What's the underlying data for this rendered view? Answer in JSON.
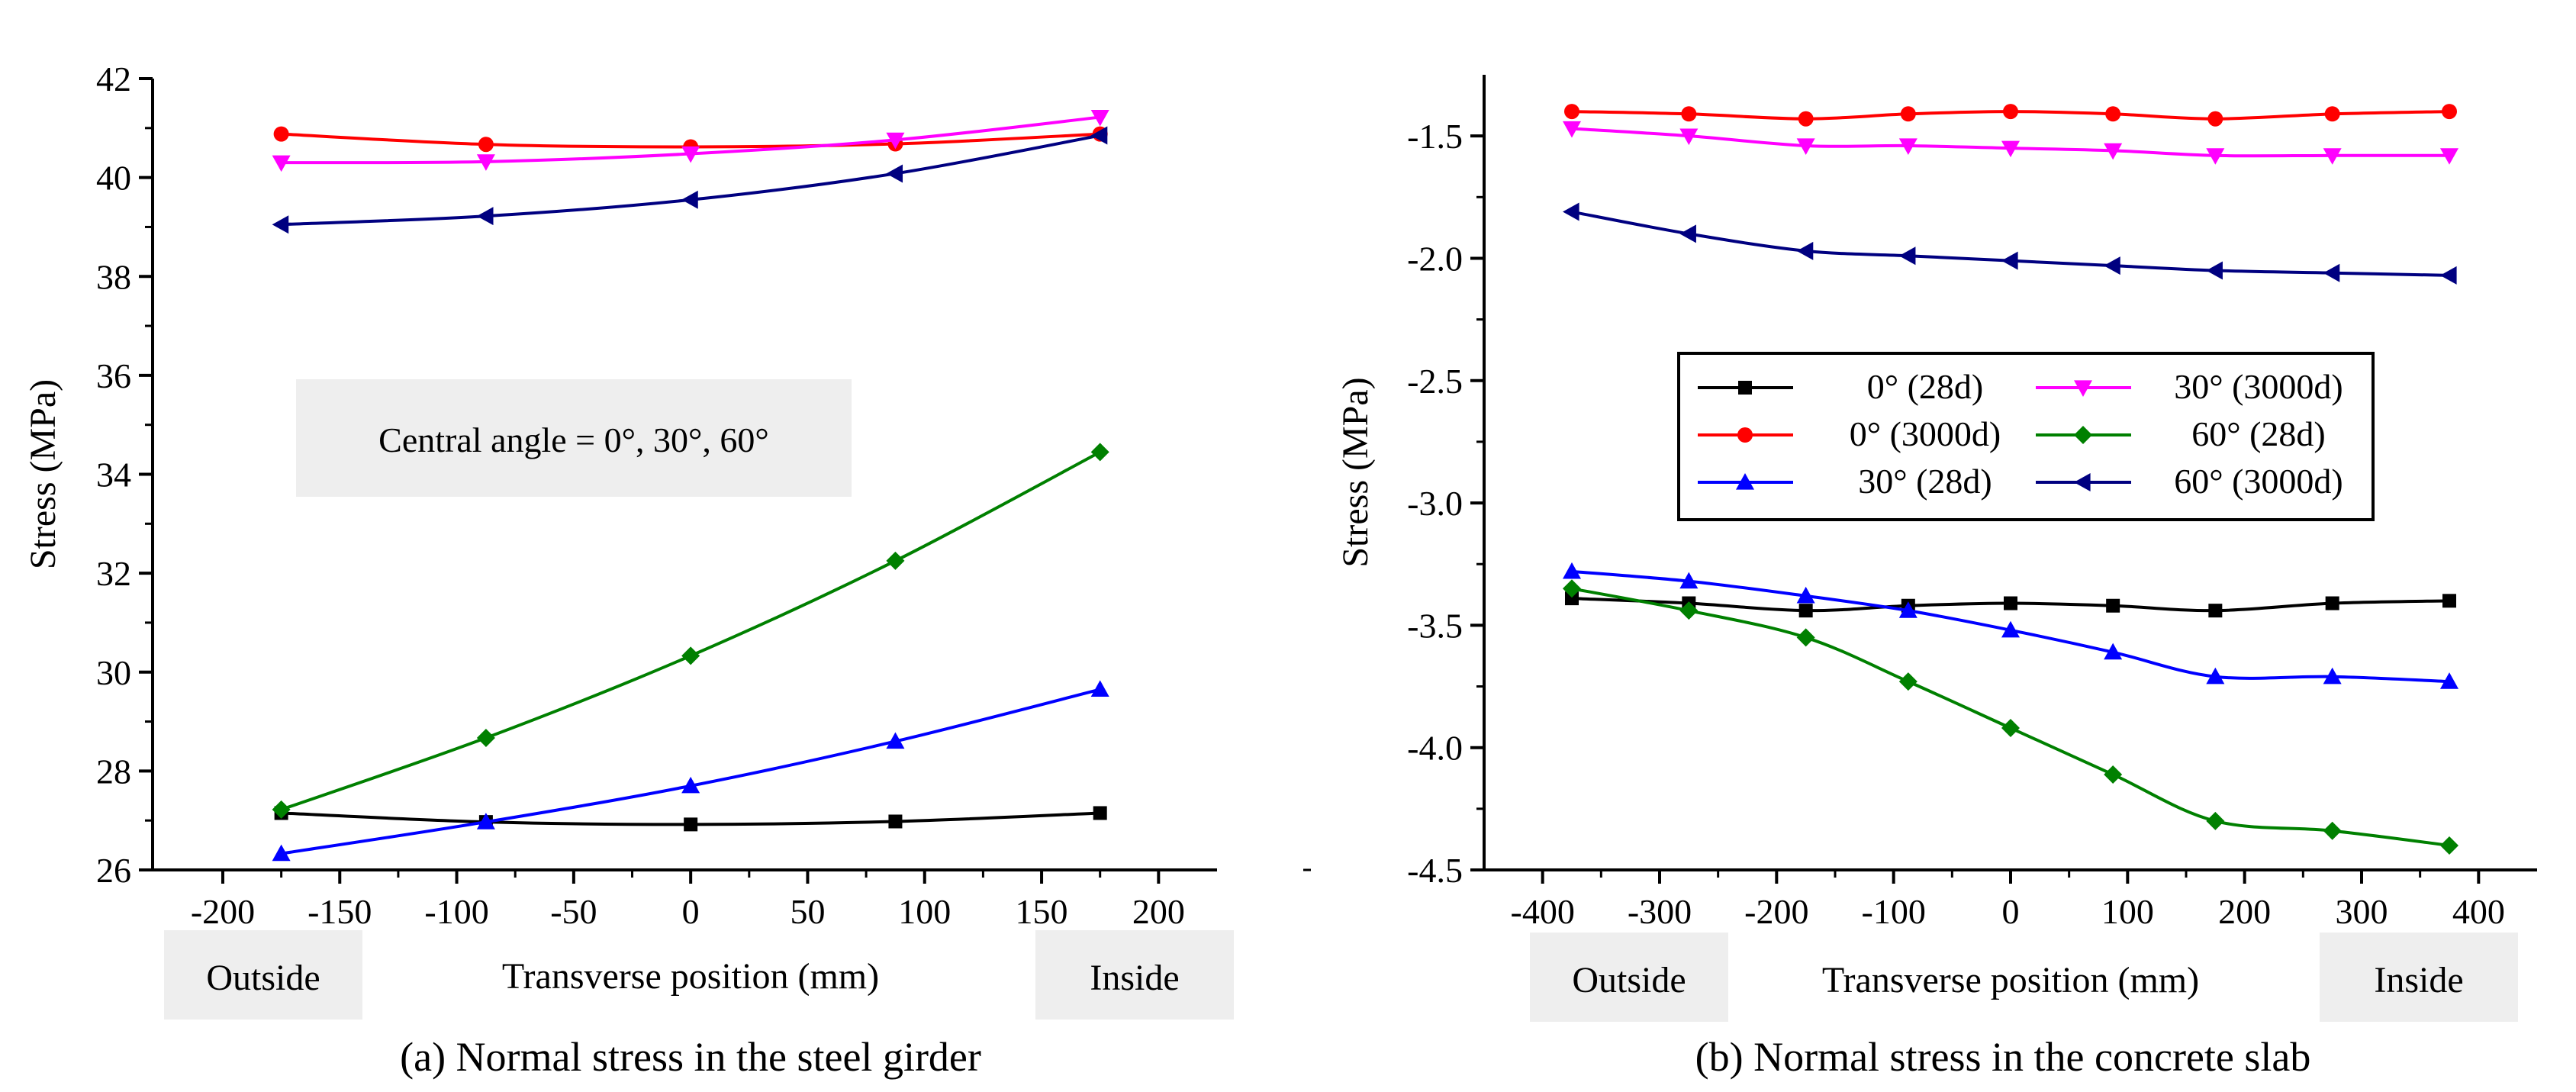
{
  "panels": {
    "left": {
      "caption": "(a) Normal stress in the steel girder",
      "annotation": "Central angle = 0°, 30°, 60°",
      "outside_label": "Outside",
      "inside_label": "Inside"
    },
    "right": {
      "caption": "(b) Normal stress in the concrete slab",
      "outside_label": "Outside",
      "inside_label": "Inside"
    }
  },
  "chart_data": [
    {
      "type": "line",
      "title": "(a) Normal stress in the steel girder",
      "xlabel": "Transverse position (mm)",
      "ylabel": "Stress (MPa)",
      "xlim": [
        -230,
        225
      ],
      "ylim": [
        26,
        42
      ],
      "xticks": [
        -200,
        -150,
        -100,
        -50,
        0,
        50,
        100,
        150,
        200
      ],
      "yticks": [
        26,
        28,
        30,
        32,
        34,
        36,
        38,
        40,
        42
      ],
      "x": [
        -175,
        -87.5,
        0,
        87.5,
        175
      ],
      "series": [
        {
          "name": "0° (28d)",
          "color": "#000000",
          "marker": "square",
          "values": [
            27.15,
            26.97,
            26.92,
            26.98,
            27.15
          ]
        },
        {
          "name": "0° (3000d)",
          "color": "#ff0000",
          "marker": "circle",
          "values": [
            40.88,
            40.67,
            40.62,
            40.68,
            40.88
          ]
        },
        {
          "name": "30° (28d)",
          "color": "#0000ff",
          "marker": "triangle-up",
          "values": [
            26.33,
            26.97,
            27.7,
            28.6,
            29.65
          ]
        },
        {
          "name": "30° (3000d)",
          "color": "#ff00ff",
          "marker": "triangle-down",
          "values": [
            40.3,
            40.32,
            40.48,
            40.76,
            41.22
          ]
        },
        {
          "name": "60° (28d)",
          "color": "#008000",
          "marker": "diamond",
          "values": [
            27.22,
            28.67,
            30.33,
            32.25,
            34.45
          ]
        },
        {
          "name": "60° (3000d)",
          "color": "#000080",
          "marker": "triangle-left",
          "values": [
            39.05,
            39.22,
            39.55,
            40.08,
            40.85
          ]
        }
      ]
    },
    {
      "type": "line",
      "title": "(b) Normal stress in the concrete slab",
      "xlabel": "Transverse position (mm)",
      "ylabel": "Stress (MPa)",
      "xlim": [
        -450,
        450
      ],
      "ylim": [
        -4.5,
        -1.25
      ],
      "xticks": [
        -400,
        -300,
        -200,
        -100,
        0,
        100,
        200,
        300,
        400
      ],
      "yticks": [
        -4.5,
        -4.0,
        -3.5,
        -3.0,
        -2.5,
        -2.0,
        -1.5
      ],
      "ytick_labels": [
        "-4.5",
        "-4.0",
        "-3.5",
        "-3.0",
        "-2.5",
        "-2.0",
        "-1.5"
      ],
      "x": [
        -375,
        -275,
        -175,
        -87.5,
        0,
        87.5,
        175,
        275,
        375
      ],
      "legend": {
        "placement": "center",
        "columns": 2
      },
      "series": [
        {
          "name": "0° (28d)",
          "color": "#000000",
          "marker": "square",
          "values": [
            -3.39,
            -3.41,
            -3.44,
            -3.42,
            -3.41,
            -3.42,
            -3.44,
            -3.41,
            -3.4
          ]
        },
        {
          "name": "0° (3000d)",
          "color": "#ff0000",
          "marker": "circle",
          "values": [
            -1.4,
            -1.41,
            -1.43,
            -1.41,
            -1.4,
            -1.41,
            -1.43,
            -1.41,
            -1.4
          ]
        },
        {
          "name": "30° (28d)",
          "color": "#0000ff",
          "marker": "triangle-up",
          "values": [
            -3.28,
            -3.32,
            -3.38,
            -3.44,
            -3.52,
            -3.61,
            -3.71,
            -3.71,
            -3.73
          ]
        },
        {
          "name": "30° (3000d)",
          "color": "#ff00ff",
          "marker": "triangle-down",
          "values": [
            -1.47,
            -1.5,
            -1.54,
            -1.54,
            -1.55,
            -1.56,
            -1.58,
            -1.58,
            -1.58
          ]
        },
        {
          "name": "60° (28d)",
          "color": "#008000",
          "marker": "diamond",
          "values": [
            -3.35,
            -3.44,
            -3.55,
            -3.73,
            -3.92,
            -4.11,
            -4.3,
            -4.34,
            -4.4
          ]
        },
        {
          "name": "60° (3000d)",
          "color": "#000080",
          "marker": "triangle-left",
          "values": [
            -1.81,
            -1.9,
            -1.97,
            -1.99,
            -2.01,
            -2.03,
            -2.05,
            -2.06,
            -2.07
          ]
        }
      ]
    }
  ]
}
